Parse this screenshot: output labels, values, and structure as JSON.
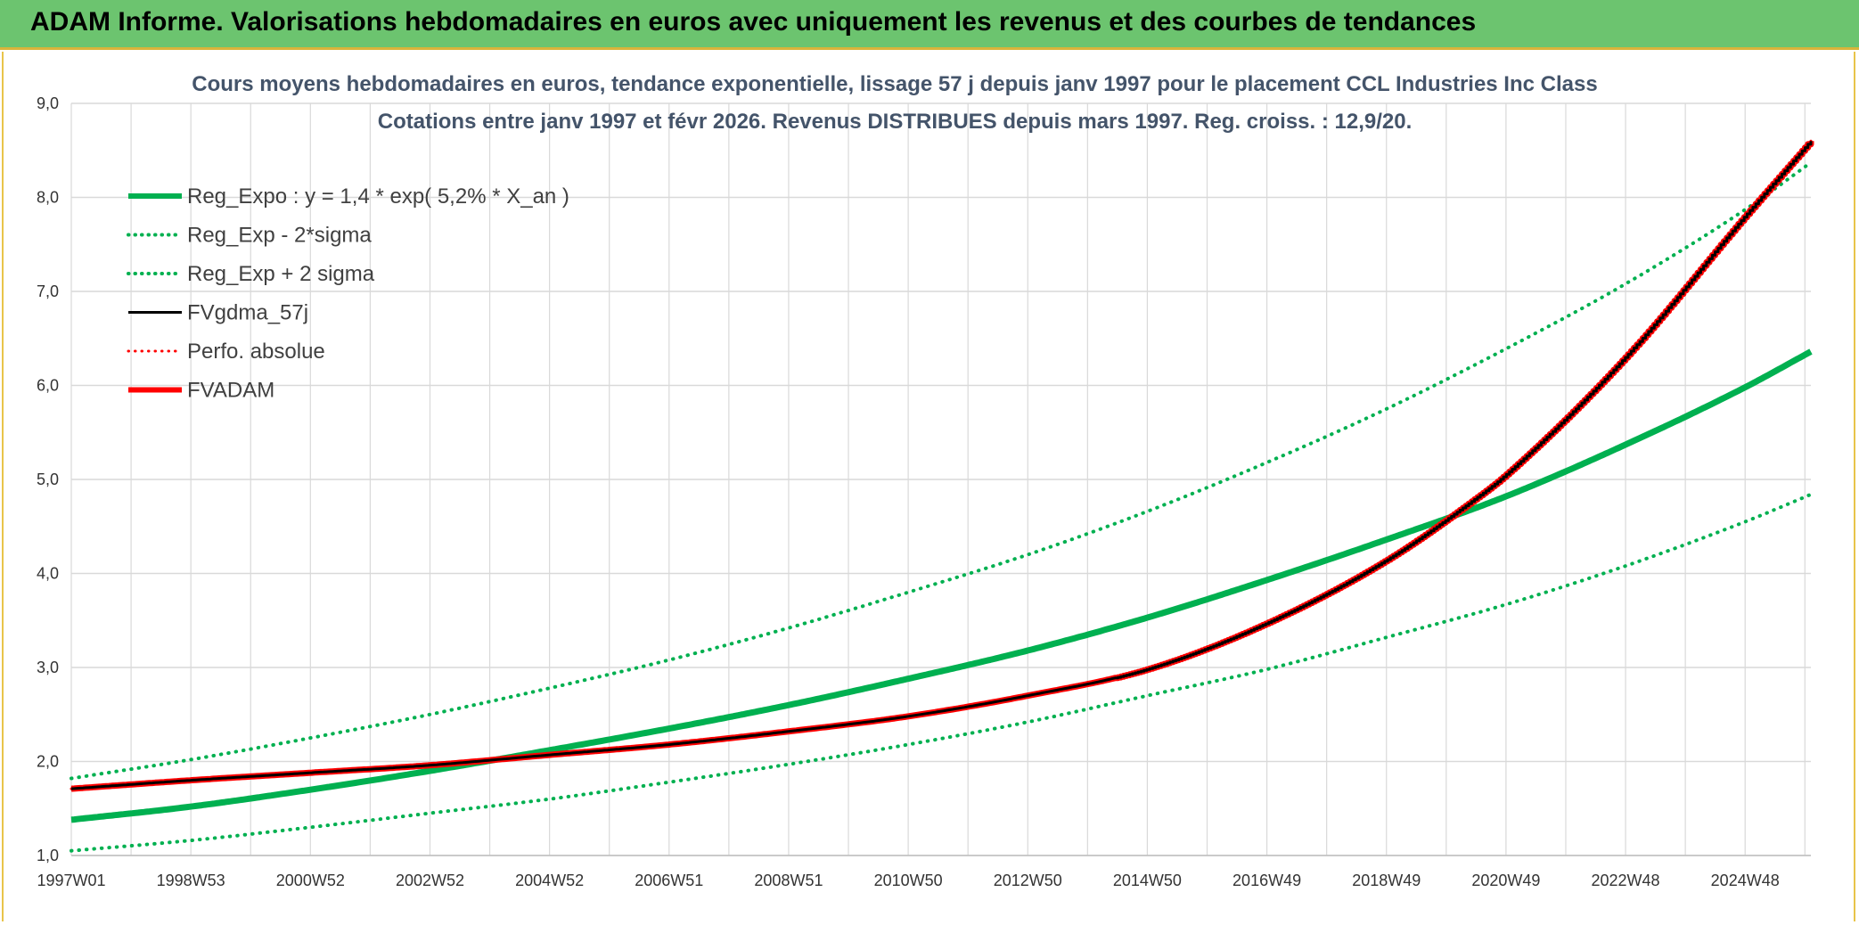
{
  "banner": {
    "title": "ADAM Informe. Valorisations hebdomadaires en euros avec uniquement les revenus et des courbes de tendances"
  },
  "colors": {
    "banner_bg": "#6cc46f",
    "green": "#00b050",
    "red": "#ff0000",
    "black": "#000000",
    "grid": "#d9d9d9",
    "title": "#44546a"
  },
  "chart_data": {
    "type": "line",
    "title_lines": [
      "Cours moyens hebdomadaires en euros, tendance exponentielle, lissage 57 j depuis janv 1997 pour le placement CCL Industries Inc Class",
      "Cotations entre janv 1997 et févr 2026. Revenus DISTRIBUES depuis mars 1997. Reg. croiss. : 12,9/20."
    ],
    "xlabel": "",
    "ylabel": "",
    "xlim": [
      1997.0,
      2026.1
    ],
    "ylim": [
      1.0,
      9.0
    ],
    "x_ticks": [
      {
        "label": "1997W01",
        "x": 1997.0
      },
      {
        "label": "1998W53",
        "x": 1999.0
      },
      {
        "label": "2000W52",
        "x": 2001.0
      },
      {
        "label": "2002W52",
        "x": 2003.0
      },
      {
        "label": "2004W52",
        "x": 2005.0
      },
      {
        "label": "2006W51",
        "x": 2007.0
      },
      {
        "label": "2008W51",
        "x": 2009.0
      },
      {
        "label": "2010W50",
        "x": 2011.0
      },
      {
        "label": "2012W50",
        "x": 2013.0
      },
      {
        "label": "2014W50",
        "x": 2015.0
      },
      {
        "label": "2016W49",
        "x": 2017.0
      },
      {
        "label": "2018W49",
        "x": 2019.0
      },
      {
        "label": "2020W49",
        "x": 2021.0
      },
      {
        "label": "2022W48",
        "x": 2023.0
      },
      {
        "label": "2024W48",
        "x": 2025.0
      }
    ],
    "y_ticks": [
      {
        "label": "1,0",
        "y": 1.0
      },
      {
        "label": "2,0",
        "y": 2.0
      },
      {
        "label": "3,0",
        "y": 3.0
      },
      {
        "label": "4,0",
        "y": 4.0
      },
      {
        "label": "5,0",
        "y": 5.0
      },
      {
        "label": "6,0",
        "y": 6.0
      },
      {
        "label": "7,0",
        "y": 7.0
      },
      {
        "label": "8,0",
        "y": 8.0
      },
      {
        "label": "9,0",
        "y": 9.0
      }
    ],
    "grid": true,
    "legend_position": "top-left",
    "series": [
      {
        "name": "Reg_Expo : y = 1,4 * exp( 5,2% *  X_an )",
        "color": "#00b050",
        "style": "solid",
        "width": 7,
        "x": [
          1997.0,
          1999.0,
          2001.0,
          2003.0,
          2005.0,
          2007.0,
          2009.0,
          2011.0,
          2013.0,
          2015.0,
          2017.0,
          2019.0,
          2021.0,
          2023.0,
          2025.0,
          2026.1
        ],
        "y": [
          1.38,
          1.52,
          1.7,
          1.9,
          2.12,
          2.35,
          2.6,
          2.88,
          3.18,
          3.53,
          3.93,
          4.36,
          4.82,
          5.37,
          5.98,
          6.36
        ]
      },
      {
        "name": "Reg_Exp - 2*sigma",
        "color": "#00b050",
        "style": "dotted",
        "width": 4,
        "x": [
          1997.0,
          1999.0,
          2001.0,
          2003.0,
          2005.0,
          2007.0,
          2009.0,
          2011.0,
          2013.0,
          2015.0,
          2017.0,
          2019.0,
          2021.0,
          2023.0,
          2025.0,
          2026.1
        ],
        "y": [
          1.05,
          1.16,
          1.3,
          1.45,
          1.6,
          1.78,
          1.97,
          2.18,
          2.42,
          2.7,
          2.98,
          3.32,
          3.67,
          4.08,
          4.55,
          4.84
        ]
      },
      {
        "name": "Reg_Exp + 2 sigma",
        "color": "#00b050",
        "style": "dotted",
        "width": 4,
        "x": [
          1997.0,
          1999.0,
          2001.0,
          2003.0,
          2005.0,
          2007.0,
          2009.0,
          2011.0,
          2013.0,
          2015.0,
          2017.0,
          2019.0,
          2021.0,
          2023.0,
          2025.0,
          2026.1
        ],
        "y": [
          1.82,
          2.02,
          2.25,
          2.5,
          2.78,
          3.08,
          3.42,
          3.8,
          4.2,
          4.66,
          5.18,
          5.75,
          6.39,
          7.08,
          7.87,
          8.37
        ]
      },
      {
        "name": "FVgdma_57j",
        "color": "#000000",
        "style": "solid",
        "width": 3,
        "x": [
          1997.0,
          1999.0,
          2001.0,
          2003.0,
          2005.0,
          2007.0,
          2009.0,
          2011.0,
          2013.0,
          2015.0,
          2017.0,
          2019.0,
          2020.5,
          2021.0,
          2023.0,
          2025.0,
          2026.1
        ],
        "y": [
          1.71,
          1.8,
          1.88,
          1.96,
          2.07,
          2.18,
          2.32,
          2.48,
          2.7,
          2.98,
          3.47,
          4.14,
          4.8,
          5.05,
          6.3,
          7.8,
          8.6
        ]
      },
      {
        "name": "Perfo. absolue",
        "color": "#ff0000",
        "style": "dotted",
        "width": 3,
        "x": [
          1997.0,
          1999.0,
          2001.0,
          2003.0,
          2005.0,
          2007.0,
          2009.0,
          2011.0,
          2013.0,
          2015.0,
          2017.0,
          2019.0,
          2020.5,
          2021.0,
          2023.0,
          2025.0,
          2026.1
        ],
        "y": [
          1.71,
          1.8,
          1.88,
          1.96,
          2.07,
          2.18,
          2.32,
          2.48,
          2.7,
          2.98,
          3.47,
          4.14,
          4.8,
          5.05,
          6.3,
          7.8,
          8.6
        ]
      },
      {
        "name": "FVADAM",
        "color": "#ff0000",
        "style": "solid",
        "width": 7,
        "x": [
          1997.0,
          1999.0,
          2001.0,
          2003.0,
          2005.0,
          2007.0,
          2009.0,
          2011.0,
          2013.0,
          2015.0,
          2017.0,
          2019.0,
          2020.5,
          2021.0,
          2023.0,
          2025.0,
          2026.1
        ],
        "y": [
          1.71,
          1.8,
          1.88,
          1.96,
          2.07,
          2.18,
          2.32,
          2.48,
          2.7,
          2.98,
          3.47,
          4.14,
          4.8,
          5.05,
          6.3,
          7.8,
          8.6
        ]
      }
    ]
  }
}
